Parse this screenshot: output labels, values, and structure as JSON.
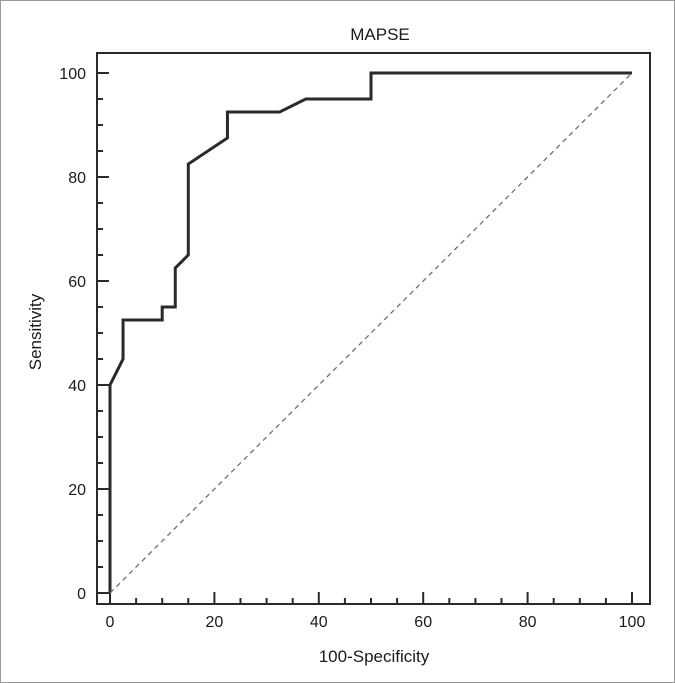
{
  "chart_data": {
    "type": "line",
    "title": "MAPSE",
    "xlabel": "100-Specificity",
    "ylabel": "Sensitivity",
    "xlim": [
      0,
      100
    ],
    "ylim": [
      0,
      100
    ],
    "x_ticks": [
      "0",
      "20",
      "40",
      "60",
      "80",
      "100"
    ],
    "y_ticks": [
      "0",
      "20",
      "40",
      "60",
      "80",
      "100"
    ],
    "grid": false,
    "legend": "none",
    "series": [
      {
        "x": [
          0,
          0,
          2.5,
          2.5,
          10,
          10,
          12.5,
          12.5,
          15,
          15,
          22.5,
          22.5,
          32.5,
          37.5,
          50,
          50,
          100
        ],
        "y": [
          0,
          40,
          45,
          52.5,
          52.5,
          55,
          55,
          62.5,
          65,
          82.5,
          87.5,
          92.5,
          92.5,
          95,
          95,
          100,
          100
        ],
        "color": "#2a2a2a"
      },
      {
        "x": [
          0,
          100
        ],
        "y": [
          0,
          100
        ],
        "color": "#707070",
        "style": "dashed"
      }
    ]
  }
}
